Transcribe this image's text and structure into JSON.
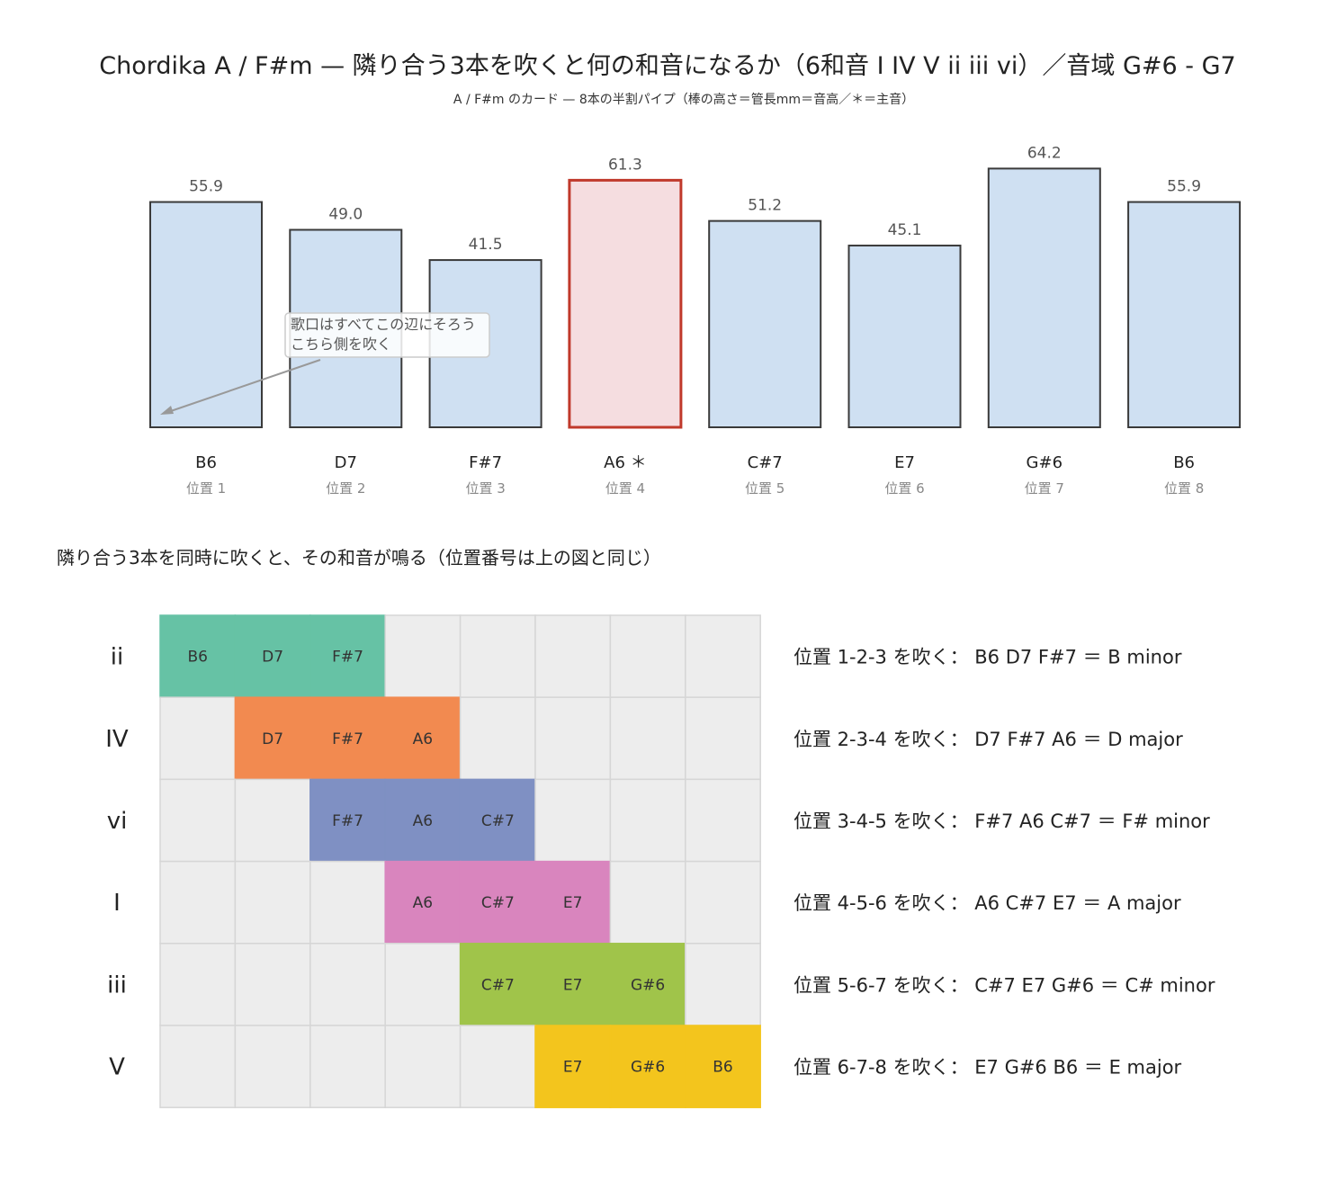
{
  "chart_data": [
    {
      "type": "bar",
      "title": "Chordika A / F#m — 隣り合う3本を吹くと何の和音になるか（6和音 I IV V ii iii vi）／音域 G#6 - G7",
      "subtitle": "A / F#m のカード — 8本の半割パイプ（棒の高さ＝管長mm＝音高／＊＝主音）",
      "categories": [
        "B6",
        "D7",
        "F#7",
        "A6 ＊",
        "C#7",
        "E7",
        "G#6",
        "B6"
      ],
      "positions": [
        "位置 1",
        "位置 2",
        "位置 3",
        "位置 4",
        "位置 5",
        "位置 6",
        "位置 7",
        "位置 8"
      ],
      "values": [
        55.9,
        49.0,
        41.5,
        61.3,
        51.2,
        45.1,
        64.2,
        55.9
      ],
      "value_labels": [
        "55.9",
        "49.0",
        "41.5",
        "61.3",
        "51.2",
        "45.1",
        "64.2",
        "55.9"
      ],
      "highlight_index": 3,
      "colors": {
        "bar": "#cfe0f2",
        "highlight": "#f5dde0",
        "highlight_stroke": "#c0392b",
        "stroke": "#3a3a3a"
      },
      "annotation": {
        "line1": "歌口はすべてこの辺にそろう",
        "line2": "こちら側を吹く"
      },
      "xlabel": "",
      "ylabel": ""
    },
    {
      "type": "table",
      "title": "隣り合う3本を同時に吹くと、その和音が鳴る（位置番号は上の図と同じ）",
      "columns": 8,
      "rows": [
        {
          "label": "ii",
          "start": 0,
          "notes": [
            "B6",
            "D7",
            "F#7"
          ],
          "color": "#66c2a5",
          "description": "位置 1-2-3 を吹く：  B6 D7 F#7 ＝ B minor"
        },
        {
          "label": "IV",
          "start": 1,
          "notes": [
            "D7",
            "F#7",
            "A6"
          ],
          "color": "#f28a50",
          "description": "位置 2-3-4 を吹く：  D7 F#7 A6 ＝ D major"
        },
        {
          "label": "vi",
          "start": 2,
          "notes": [
            "F#7",
            "A6",
            "C#7"
          ],
          "color": "#7f90c3",
          "description": "位置 3-4-5 を吹く：  F#7 A6 C#7 ＝ F# minor"
        },
        {
          "label": "I",
          "start": 3,
          "notes": [
            "A6",
            "C#7",
            "E7"
          ],
          "color": "#d985be",
          "description": "位置 4-5-6 を吹く：  A6 C#7 E7 ＝ A major"
        },
        {
          "label": "iii",
          "start": 4,
          "notes": [
            "C#7",
            "E7",
            "G#6"
          ],
          "color": "#a0c44a",
          "description": "位置 5-6-7 を吹く：  C#7 E7 G#6 ＝ C# minor"
        },
        {
          "label": "V",
          "start": 5,
          "notes": [
            "E7",
            "G#6",
            "B6"
          ],
          "color": "#f3c51d",
          "description": "位置 6-7-8 を吹く：  E7 G#6 B6 ＝ E major"
        }
      ],
      "empty_color": "#ededed"
    }
  ]
}
